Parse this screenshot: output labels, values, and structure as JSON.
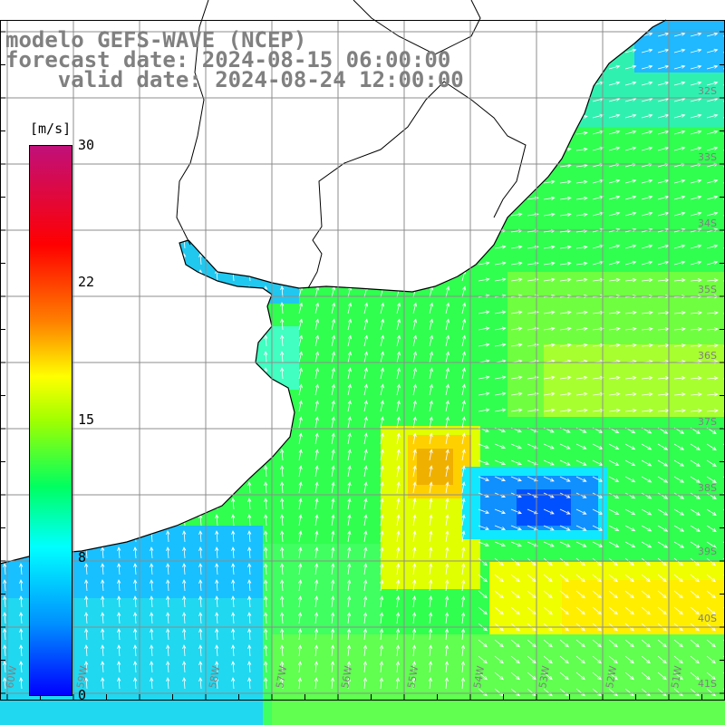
{
  "title": {
    "line1": "modelo GEFS-WAVE (NCEP)",
    "line2": "forecast date: 2024-08-15 06:00:00",
    "line3": "    valid date: 2024-08-24 12:00:00"
  },
  "colorbar": {
    "unit": "[m/s]",
    "ticks": [
      "30",
      "22",
      "15",
      "8",
      "0"
    ]
  },
  "lat_labels": [
    "32S",
    "33S",
    "34S",
    "35S",
    "36S",
    "37S",
    "38S",
    "39S",
    "40S",
    "41S"
  ],
  "lon_labels": [
    "60W",
    "59W",
    "58W",
    "57W",
    "56W",
    "55W",
    "54W",
    "53W",
    "52W",
    "51W"
  ],
  "colors": {
    "land": "#ffffff",
    "grid": "#8c8c8c",
    "coast": "#000000",
    "arrows": "#ffffff",
    "label": "#808080"
  }
}
